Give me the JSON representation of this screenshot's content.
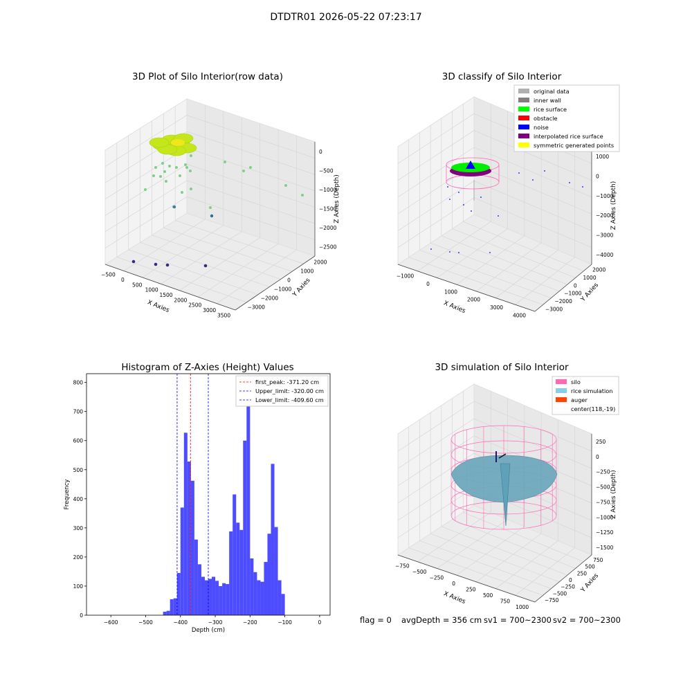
{
  "figure": {
    "suptitle": "DTDTR01 2026-05-22 07:23:17"
  },
  "status": {
    "flag": "flag = 0",
    "avg_depth": "avgDepth = 356 cm",
    "sv1": "sv1 = 700~2300",
    "sv2": "sv2 = 700~2300"
  },
  "colors": {
    "hist_bar": "#4d4dff",
    "first_peak": "#ff0000",
    "limits": "#0000ff",
    "silo": "#ff69b4",
    "rice": "#87ceeb",
    "auger": "#ff4500"
  },
  "chart_data": [
    {
      "type": "scatter",
      "kind": "3d",
      "title": "3D Plot of Silo Interior(row data)",
      "xlabel": "X Axies",
      "ylabel": "Y Axies",
      "zlabel": "Z Axies (Depth)",
      "x_ticks": [
        "−500",
        "0",
        "500",
        "1000",
        "1500",
        "2000",
        "2500",
        "3000",
        "3500"
      ],
      "y_ticks": [
        "−3000",
        "−2000",
        "−1000",
        "0",
        "1000",
        "2000"
      ],
      "z_ticks": [
        "−2500",
        "−2000",
        "−1500",
        "−1000",
        "−500",
        "0"
      ]
    },
    {
      "type": "scatter",
      "kind": "3d",
      "title": "3D classify of Silo Interior",
      "xlabel": "X Axies",
      "ylabel": "Y Axies",
      "zlabel": "Z Axies (Depth)",
      "x_ticks": [
        "−1000",
        "0",
        "1000",
        "2000",
        "3000",
        "4000"
      ],
      "y_ticks": [
        "−3000",
        "−2000",
        "−1000",
        "0",
        "1000",
        "2000"
      ],
      "z_ticks": [
        "−4000",
        "−3000",
        "−2000",
        "−1000",
        "0",
        "1000"
      ],
      "legend": [
        {
          "label": "original data",
          "color": "#b0b0b0"
        },
        {
          "label": "inner wall",
          "color": "#808080"
        },
        {
          "label": "rice surface",
          "color": "#00ff00"
        },
        {
          "label": "obstacle",
          "color": "#ff0000"
        },
        {
          "label": "noise",
          "color": "#0000ff"
        },
        {
          "label": "interpolated rice surface",
          "color": "#800080"
        },
        {
          "label": "symmetric generated points",
          "color": "#ffff00"
        }
      ],
      "legend_placement": "top-right"
    },
    {
      "type": "bar",
      "kind": "histogram",
      "title": "Histogram of Z-Axies (Height) Values",
      "xlabel": "Depth (cm)",
      "ylabel": "Frequency",
      "xlim": [
        -670,
        30
      ],
      "ylim": [
        0,
        830
      ],
      "x_ticks": [
        -600,
        -500,
        -400,
        -300,
        -200,
        -100,
        0
      ],
      "y_ticks": [
        0,
        100,
        200,
        300,
        400,
        500,
        600,
        700,
        800
      ],
      "bin_width": 10,
      "bins": [
        {
          "x": -450,
          "v": 12
        },
        {
          "x": -440,
          "v": 15
        },
        {
          "x": -430,
          "v": 55
        },
        {
          "x": -420,
          "v": 58
        },
        {
          "x": -410,
          "v": 145
        },
        {
          "x": -400,
          "v": 370
        },
        {
          "x": -390,
          "v": 627
        },
        {
          "x": -380,
          "v": 528
        },
        {
          "x": -370,
          "v": 462
        },
        {
          "x": -360,
          "v": 260
        },
        {
          "x": -350,
          "v": 175
        },
        {
          "x": -340,
          "v": 132
        },
        {
          "x": -330,
          "v": 120
        },
        {
          "x": -320,
          "v": 125
        },
        {
          "x": -310,
          "v": 132
        },
        {
          "x": -300,
          "v": 118
        },
        {
          "x": -290,
          "v": 100
        },
        {
          "x": -280,
          "v": 110
        },
        {
          "x": -270,
          "v": 107
        },
        {
          "x": -260,
          "v": 288
        },
        {
          "x": -250,
          "v": 415
        },
        {
          "x": -240,
          "v": 318
        },
        {
          "x": -230,
          "v": 293
        },
        {
          "x": -220,
          "v": 600
        },
        {
          "x": -210,
          "v": 785
        },
        {
          "x": -200,
          "v": 195
        },
        {
          "x": -190,
          "v": 148
        },
        {
          "x": -180,
          "v": 120
        },
        {
          "x": -170,
          "v": 115
        },
        {
          "x": -160,
          "v": 183
        },
        {
          "x": -150,
          "v": 280
        },
        {
          "x": -140,
          "v": 520
        },
        {
          "x": -130,
          "v": 303
        },
        {
          "x": -120,
          "v": 120
        },
        {
          "x": -110,
          "v": 73
        }
      ],
      "vlines": [
        {
          "x": -371.2,
          "label": "first_peak: -371.20 cm",
          "color": "#ff0000"
        },
        {
          "x": -320.0,
          "label": "Upper_limit: -320.00 cm",
          "color": "#0000ff"
        },
        {
          "x": -409.6,
          "label": "Lower_limit: -409.60 cm",
          "color": "#0000ff"
        }
      ],
      "legend_placement": "top-right"
    },
    {
      "type": "area",
      "kind": "3d-surface",
      "title": "3D simulation of Silo Interior",
      "xlabel": "X Axies",
      "ylabel": "Y Axies",
      "zlabel": "Z Axies (Depth)",
      "x_ticks": [
        "−750",
        "−500",
        "−250",
        "0",
        "250",
        "500",
        "750",
        "1000"
      ],
      "y_ticks": [
        "−750",
        "−500",
        "−250",
        "0",
        "250",
        "500",
        "750"
      ],
      "z_ticks": [
        "−1500",
        "−1250",
        "−1000",
        "−750",
        "−500",
        "−250",
        "0",
        "250"
      ],
      "legend": [
        {
          "label": "silo",
          "color": "#ff69b4"
        },
        {
          "label": "rice simulation",
          "color": "#87ceeb"
        },
        {
          "label": "auger",
          "color": "#ff4500"
        },
        {
          "label": "center(118,-19)",
          "color": ""
        }
      ],
      "legend_placement": "top-right"
    }
  ]
}
